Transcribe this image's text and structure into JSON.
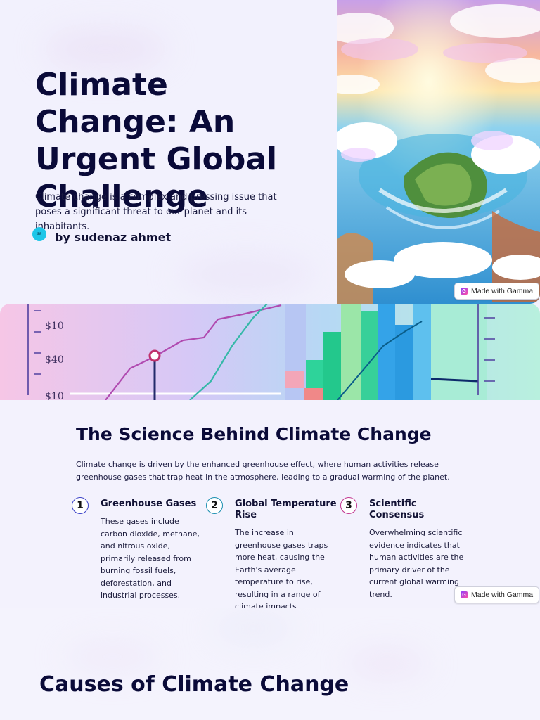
{
  "slide1": {
    "title": "Climate Change: An Urgent Global Challenge",
    "intro": "Climate change is a complex and pressing issue that poses a significant threat to our planet and its inhabitants.",
    "author_initials": "sa",
    "author": "by sudenaz ahmet",
    "badge": "Made with Gamma"
  },
  "slide2": {
    "heading": "The Science Behind Climate Change",
    "description": "Climate change is driven by the enhanced greenhouse effect, where human activities release greenhouse gases that trap heat in the atmosphere, leading to a gradual warming of the planet.",
    "steps": [
      {
        "num": "1",
        "title": "Greenhouse Gases",
        "text": "These gases include carbon dioxide, methane, and nitrous oxide, primarily released from burning fossil fuels, deforestation, and industrial processes.",
        "color": "#3b42c8"
      },
      {
        "num": "2",
        "title": "Global Temperature Rise",
        "text": "The increase in greenhouse gases traps more heat, causing the Earth's average temperature to rise, resulting in a range of climate impacts.",
        "color": "#1a8fb0"
      },
      {
        "num": "3",
        "title": "Scientific Consensus",
        "text": "Overwhelming scientific evidence indicates that human activities are the primary driver of the current global warming trend.",
        "color": "#c2358f"
      }
    ],
    "badge": "Made with Gamma",
    "banner_labels": [
      "$10",
      "$40",
      "$10"
    ]
  },
  "slide3": {
    "heading": "Causes of Climate Change"
  }
}
